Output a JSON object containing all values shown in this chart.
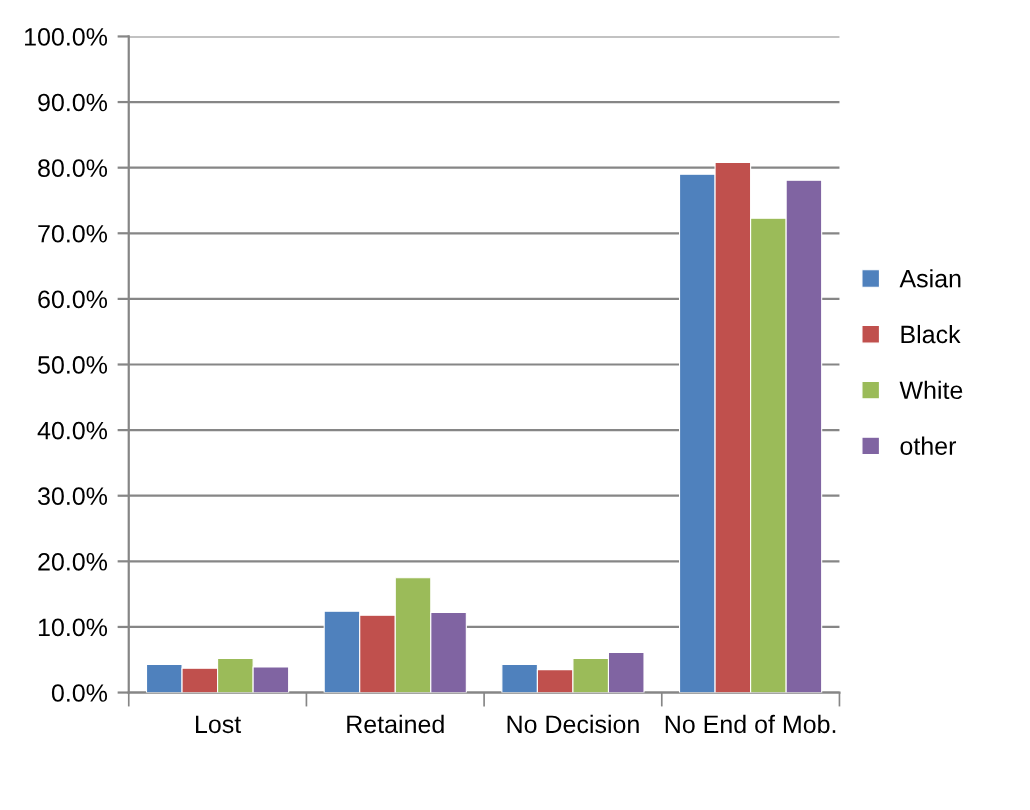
{
  "chart_data": {
    "type": "bar",
    "categories": [
      "Lost",
      "Retained",
      "No Decision",
      "No End of Mob."
    ],
    "series": [
      {
        "name": "Asian",
        "color": "#4f81bd",
        "values": [
          4.3,
          12.4,
          4.3,
          79.0
        ]
      },
      {
        "name": "Black",
        "color": "#c0504d",
        "values": [
          3.7,
          11.8,
          3.5,
          80.8
        ]
      },
      {
        "name": "White",
        "color": "#9bbb59",
        "values": [
          5.2,
          17.5,
          5.2,
          72.3
        ]
      },
      {
        "name": "other",
        "color": "#8064a2",
        "values": [
          3.9,
          12.2,
          6.1,
          78.1
        ]
      }
    ],
    "ylim": [
      0,
      100
    ],
    "yticks": [
      {
        "value": 0,
        "label": "0.0%"
      },
      {
        "value": 10,
        "label": "10.0%"
      },
      {
        "value": 20,
        "label": "20.0%"
      },
      {
        "value": 30,
        "label": "30.0%"
      },
      {
        "value": 40,
        "label": "40.0%"
      },
      {
        "value": 50,
        "label": "50.0%"
      },
      {
        "value": 60,
        "label": "60.0%"
      },
      {
        "value": 70,
        "label": "70.0%"
      },
      {
        "value": 80,
        "label": "80.0%"
      },
      {
        "value": 90,
        "label": "90.0%"
      },
      {
        "value": 100,
        "label": "100.0%"
      }
    ],
    "grid": "y",
    "legend": "right"
  }
}
